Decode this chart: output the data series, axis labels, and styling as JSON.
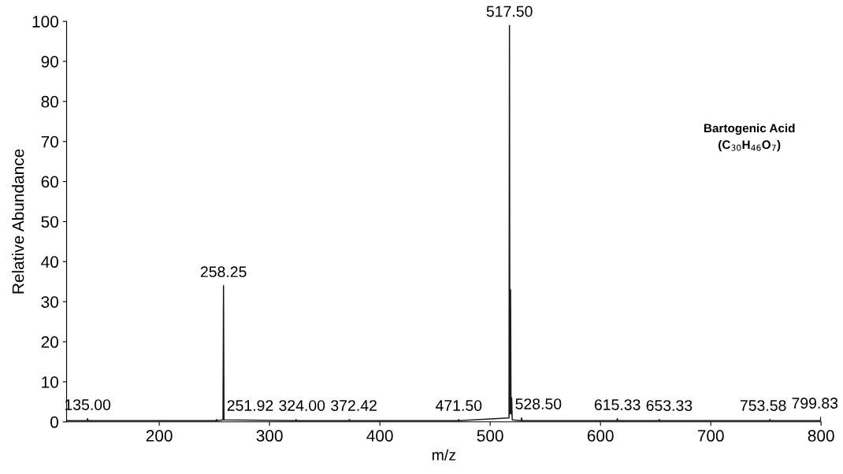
{
  "chart_data": {
    "type": "line",
    "xlabel": "m/z",
    "ylabel": "Relative Abundance",
    "x": [
      116,
      134.5,
      135,
      135.5,
      251.5,
      251.92,
      252.3,
      257.8,
      258.25,
      258.7,
      323.6,
      324,
      324.4,
      372,
      372.42,
      372.8,
      471.1,
      471.5,
      471.9,
      517.1,
      517.5,
      517.9,
      518.5,
      518.9,
      519.5,
      520,
      528.1,
      528.5,
      528.9,
      614.9,
      615.33,
      615.7,
      652.9,
      653.33,
      653.7,
      753.2,
      753.58,
      754,
      799.4,
      799.83,
      800
    ],
    "series": [
      {
        "color": "#1a1a1a",
        "values": [
          0.3,
          0.3,
          0.8,
          0.3,
          0.3,
          0.6,
          0.3,
          0.5,
          34,
          0.5,
          0.3,
          0.6,
          0.3,
          0.3,
          0.6,
          0.3,
          0.3,
          0.6,
          0.3,
          1,
          99,
          2,
          33,
          2,
          6,
          0.5,
          0.3,
          1,
          0.3,
          0.3,
          0.8,
          0.3,
          0.3,
          0.6,
          0.3,
          0.3,
          0.6,
          0.3,
          0.3,
          1.2,
          0.3
        ]
      }
    ],
    "xlim": [
      116,
      800
    ],
    "xticks": [
      200,
      300,
      400,
      500,
      600,
      700,
      800
    ],
    "ylim": [
      0,
      100
    ],
    "yticks": [
      0,
      10,
      20,
      30,
      40,
      50,
      60,
      70,
      80,
      90,
      100
    ],
    "grid": false,
    "legend": false,
    "marker": "none",
    "line_style": "solid",
    "annotations": [
      {
        "text": "135.00",
        "x": 135,
        "y": 0.8
      },
      {
        "text": "251.92",
        "x": 251.92,
        "y": 0.6
      },
      {
        "text": "258.25",
        "x": 258.25,
        "y": 34
      },
      {
        "text": "324.00",
        "x": 324,
        "y": 0.6
      },
      {
        "text": "372.42",
        "x": 372.42,
        "y": 0.6
      },
      {
        "text": "471.50",
        "x": 471.5,
        "y": 0.6
      },
      {
        "text": "517.50",
        "x": 517.5,
        "y": 99
      },
      {
        "text": "528.50",
        "x": 528.5,
        "y": 1
      },
      {
        "text": "615.33",
        "x": 615.33,
        "y": 0.8
      },
      {
        "text": "653.33",
        "x": 653.33,
        "y": 0.6
      },
      {
        "text": "753.58",
        "x": 753.58,
        "y": 0.6
      },
      {
        "text": "799.83",
        "x": 799.83,
        "y": 1.2
      },
      "Bartogenic Acid\n(C$_{30}$H$_{46}$O$_{7}$)"
    ]
  }
}
